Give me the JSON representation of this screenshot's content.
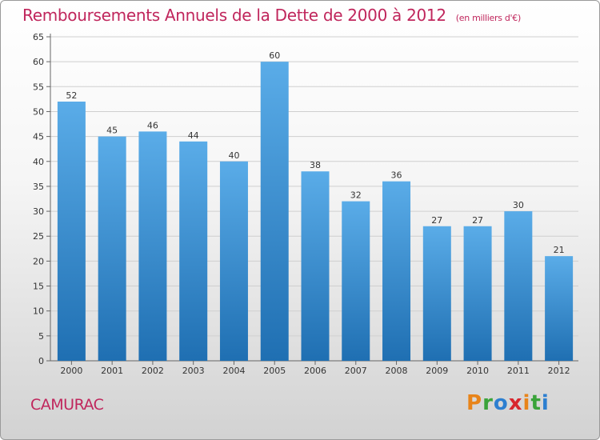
{
  "title": "Remboursements Annuels de la Dette de 2000 à 2012",
  "unit": "(en milliers d'€)",
  "town": "CAMURAC",
  "logo": [
    "P",
    "r",
    "o",
    "x",
    "i",
    "t",
    "i"
  ],
  "logo_colors": [
    "#e8841a",
    "#3aa33a",
    "#2d7fd0",
    "#d8262e",
    "#e8841a",
    "#3aa33a",
    "#2d7fd0"
  ],
  "colors": {
    "accent": "#c0265c",
    "bar_top": "#5aace8",
    "bar_bottom": "#1f6fb2",
    "grid": "#cfcfcf"
  },
  "chart_data": {
    "type": "bar",
    "categories": [
      "2000",
      "2001",
      "2002",
      "2003",
      "2004",
      "2005",
      "2006",
      "2007",
      "2008",
      "2009",
      "2010",
      "2011",
      "2012"
    ],
    "values": [
      52,
      45,
      46,
      44,
      40,
      60,
      38,
      32,
      36,
      27,
      27,
      30,
      21
    ],
    "data_labels": [
      "52",
      "45",
      "46",
      "44",
      "40",
      "60",
      "38",
      "32",
      "36",
      "27",
      "27",
      "30",
      "21"
    ],
    "yticks": [
      0,
      5,
      10,
      15,
      20,
      25,
      30,
      35,
      40,
      45,
      50,
      55,
      60,
      65
    ],
    "ylim": [
      0,
      65
    ],
    "grid": true
  }
}
